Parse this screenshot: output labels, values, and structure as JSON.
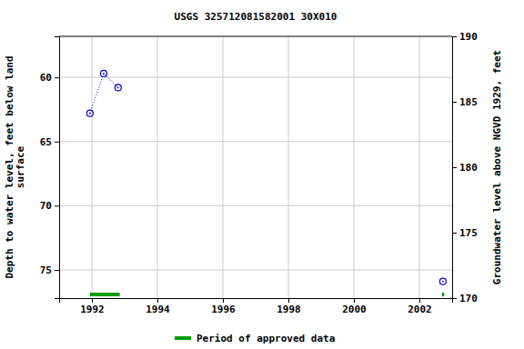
{
  "chart_data": {
    "type": "scatter",
    "title": "USGS 325712081582001 30X010",
    "ylabel": [
      "Depth to water level, feet below land",
      "surface"
    ],
    "y2label": "Groundwater level above NGVD 1929, feet",
    "xlim": [
      1991.0,
      2003.0
    ],
    "xticks": [
      1992,
      1994,
      1996,
      1998,
      2000,
      2002
    ],
    "ylim": [
      56.8,
      77.2
    ],
    "yticks": [
      60,
      65,
      70,
      75
    ],
    "y2lim": [
      190,
      170
    ],
    "y2ticks": [
      170,
      175,
      180,
      185,
      190
    ],
    "grid": true,
    "series": [
      {
        "color": "#0000cc",
        "marker": "circle",
        "line_style": "dotted",
        "x": [
          1991.94,
          1992.36,
          1992.8
        ],
        "values": [
          62.8,
          59.7,
          60.8
        ]
      },
      {
        "color": "#0000cc",
        "marker": "circle",
        "line_style": "dotted",
        "x": [
          2002.72
        ],
        "values": [
          75.9
        ]
      }
    ],
    "periods": {
      "name": "Period of approved data",
      "color": "#00a000",
      "ranges": [
        [
          1991.94,
          1992.85
        ],
        [
          2002.69,
          2002.76
        ]
      ]
    }
  }
}
